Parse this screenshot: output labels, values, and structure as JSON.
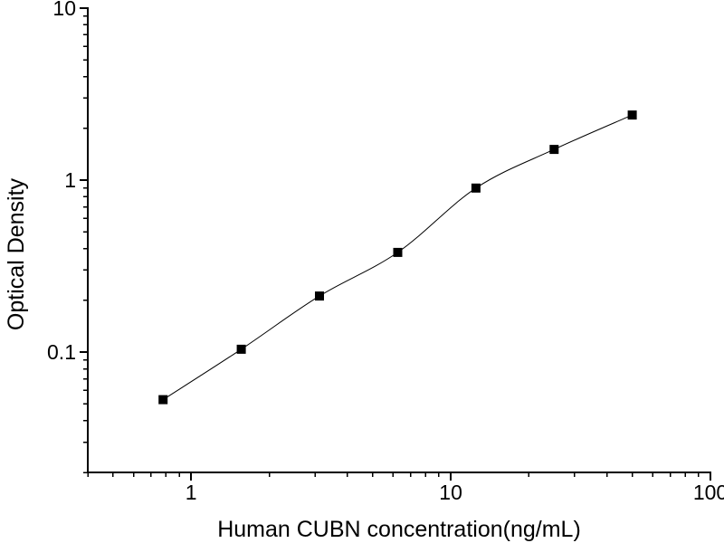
{
  "figure": {
    "background_color": "#ffffff",
    "axis_color": "#000000",
    "text_color": "#000000"
  },
  "chart_data": {
    "type": "scatter",
    "subtype": "elisa-standard-curve",
    "title": "",
    "xlabel": "Human CUBN concentration(ng/mL)",
    "ylabel": "Optical Density",
    "xscale": "log",
    "yscale": "log",
    "xlim": [
      0.4,
      100
    ],
    "ylim": [
      0.02,
      10
    ],
    "x": [
      0.78,
      1.56,
      3.12,
      6.25,
      12.5,
      25,
      50
    ],
    "y": [
      0.053,
      0.104,
      0.212,
      0.38,
      0.9,
      1.51,
      2.39
    ],
    "x_ticks": {
      "values": [
        1,
        10,
        100
      ],
      "labels": [
        "1",
        "10",
        "100"
      ]
    },
    "y_ticks": {
      "values": [
        0.1,
        1,
        10
      ],
      "labels": [
        "0.1",
        "1",
        "10"
      ]
    },
    "grid": false,
    "legend": null,
    "marker": {
      "shape": "filled-square",
      "size": 10,
      "color": "#000000"
    },
    "line": {
      "color": "#000000",
      "width": 1,
      "style": "solid"
    }
  }
}
